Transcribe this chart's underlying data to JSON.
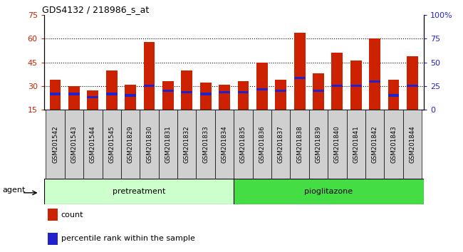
{
  "title": "GDS4132 / 218986_s_at",
  "samples": [
    "GSM201542",
    "GSM201543",
    "GSM201544",
    "GSM201545",
    "GSM201829",
    "GSM201830",
    "GSM201831",
    "GSM201832",
    "GSM201833",
    "GSM201834",
    "GSM201835",
    "GSM201836",
    "GSM201837",
    "GSM201838",
    "GSM201839",
    "GSM201840",
    "GSM201841",
    "GSM201842",
    "GSM201843",
    "GSM201844"
  ],
  "count_values": [
    34,
    30,
    27,
    40,
    31,
    58,
    33,
    40,
    32,
    31,
    33,
    45,
    34,
    64,
    38,
    51,
    46,
    60,
    34,
    49
  ],
  "percentile_values": [
    25,
    25,
    23,
    25,
    24,
    30,
    27,
    26,
    25,
    26,
    26,
    28,
    27,
    35,
    27,
    30,
    30,
    33,
    24,
    30
  ],
  "bar_color": "#cc2200",
  "marker_color": "#2222cc",
  "group1_label": "pretreatment",
  "group2_label": "pioglitazone",
  "group1_count": 10,
  "group2_count": 10,
  "group1_color": "#ccffcc",
  "group2_color": "#44dd44",
  "agent_label": "agent",
  "ylim_left": [
    15,
    75
  ],
  "ylim_right": [
    0,
    100
  ],
  "yticks_left": [
    15,
    30,
    45,
    60,
    75
  ],
  "yticks_right": [
    0,
    25,
    50,
    75,
    100
  ],
  "grid_lines": [
    30,
    45,
    60
  ],
  "legend_count": "count",
  "legend_pct": "percentile rank within the sample",
  "bar_width": 0.6,
  "tick_label_bg": "#d0d0d0"
}
